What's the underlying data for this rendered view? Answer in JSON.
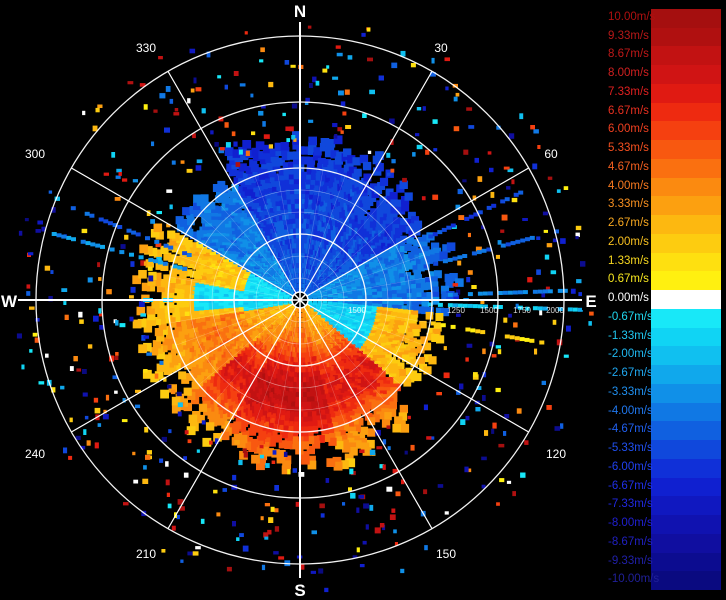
{
  "compass": {
    "north": "N",
    "south": "S",
    "east": "E",
    "west": "W"
  },
  "azimuth_labels": [
    "30",
    "60",
    "120",
    "150",
    "210",
    "240",
    "300",
    "330"
  ],
  "range_labels": [
    "1250",
    "1500",
    "1750",
    "2000",
    "1500"
  ],
  "legend": [
    {
      "label": "10.00m/s",
      "color": "#a50f0f",
      "text_color": "#b01010"
    },
    {
      "label": "9.33m/s",
      "color": "#b01010",
      "text_color": "#b81818"
    },
    {
      "label": "8.67m/s",
      "color": "#c21212",
      "text_color": "#c01818"
    },
    {
      "label": "8.00m/s",
      "color": "#d01414",
      "text_color": "#d02020"
    },
    {
      "label": "7.33m/s",
      "color": "#e01a12",
      "text_color": "#e02020"
    },
    {
      "label": "6.67m/s",
      "color": "#ee2a10",
      "text_color": "#e83020"
    },
    {
      "label": "6.00m/s",
      "color": "#f54010",
      "text_color": "#f04020"
    },
    {
      "label": "5.33m/s",
      "color": "#f85810",
      "text_color": "#f45020"
    },
    {
      "label": "4.67m/s",
      "color": "#fa7010",
      "text_color": "#f46020"
    },
    {
      "label": "4.00m/s",
      "color": "#fb8a10",
      "text_color": "#f87a20"
    },
    {
      "label": "3.33m/s",
      "color": "#fca010",
      "text_color": "#f89020"
    },
    {
      "label": "2.67m/s",
      "color": "#fdb810",
      "text_color": "#f8a820"
    },
    {
      "label": "2.00m/s",
      "color": "#fdcc10",
      "text_color": "#f8c020"
    },
    {
      "label": "1.33m/s",
      "color": "#fee010",
      "text_color": "#f8d820"
    },
    {
      "label": "0.67m/s",
      "color": "#fff010",
      "text_color": "#f8e820"
    },
    {
      "label": "0.00m/s",
      "color": "#ffffff",
      "text_color": "#ffffff"
    },
    {
      "label": "-0.67m/s",
      "color": "#18e8f8",
      "text_color": "#20d8f0"
    },
    {
      "label": "-1.33m/s",
      "color": "#10d4f4",
      "text_color": "#20c8f0"
    },
    {
      "label": "-2.00m/s",
      "color": "#10c0f0",
      "text_color": "#20b8f0"
    },
    {
      "label": "-2.67m/s",
      "color": "#10a8ec",
      "text_color": "#20a8f0"
    },
    {
      "label": "-3.33m/s",
      "color": "#1090e8",
      "text_color": "#2090f0"
    },
    {
      "label": "-4.00m/s",
      "color": "#1078e4",
      "text_color": "#2078f0"
    },
    {
      "label": "-4.67m/s",
      "color": "#1060e0",
      "text_color": "#2060f0"
    },
    {
      "label": "-5.33m/s",
      "color": "#1048dc",
      "text_color": "#2050f0"
    },
    {
      "label": "-6.00m/s",
      "color": "#1030d8",
      "text_color": "#2040f0"
    },
    {
      "label": "-6.67m/s",
      "color": "#1020d0",
      "text_color": "#2030e8"
    },
    {
      "label": "-7.33m/s",
      "color": "#1018c0",
      "text_color": "#2028e0"
    },
    {
      "label": "-8.00m/s",
      "color": "#1012b0",
      "text_color": "#2020d0"
    },
    {
      "label": "-8.67m/s",
      "color": "#100ea0",
      "text_color": "#2020c0"
    },
    {
      "label": "-9.33m/s",
      "color": "#0c0c90",
      "text_color": "#2020a8"
    },
    {
      "label": "-10.00m/s",
      "color": "#0a0a80",
      "text_color": "#202098"
    }
  ],
  "colors": {
    "background": "#000000",
    "grid": "#ffffff"
  }
}
